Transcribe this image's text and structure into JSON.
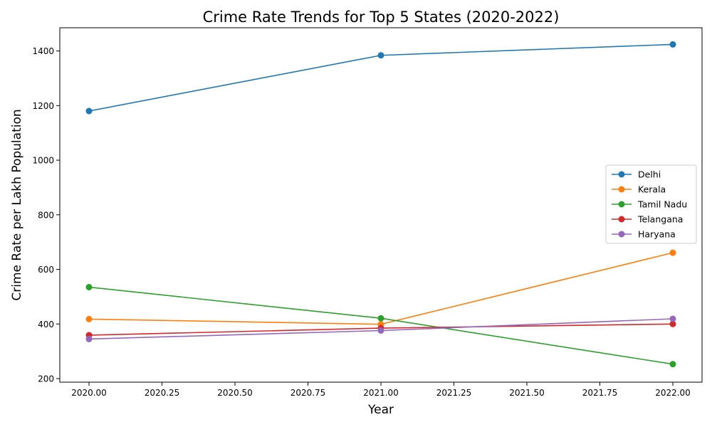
{
  "chart_data": {
    "type": "line",
    "title": "Crime Rate Trends for Top 5 States (2020-2022)",
    "xlabel": "Year",
    "ylabel": "Crime Rate per Lakh Population",
    "x": [
      2020,
      2021,
      2022
    ],
    "xlim": [
      1999.9,
      2022.1
    ],
    "ylim": [
      187,
      1485
    ],
    "x_ticks": [
      2020.0,
      2020.25,
      2020.5,
      2020.75,
      2021.0,
      2021.25,
      2021.5,
      2021.75,
      2022.0
    ],
    "x_tick_labels": [
      "2020.00",
      "2020.25",
      "2020.50",
      "2020.75",
      "2021.00",
      "2021.25",
      "2021.50",
      "2021.75",
      "2022.00"
    ],
    "y_ticks": [
      200,
      400,
      600,
      800,
      1000,
      1200,
      1400
    ],
    "y_tick_labels": [
      "200",
      "400",
      "600",
      "800",
      "1000",
      "1200",
      "1400"
    ],
    "grid": false,
    "legend_position": "center-right",
    "series": [
      {
        "name": "Delhi",
        "color": "#1f77b4",
        "values": [
          1180,
          1384,
          1424
        ]
      },
      {
        "name": "Kerala",
        "color": "#ff7f0e",
        "values": [
          418,
          399,
          661
        ]
      },
      {
        "name": "Tamil Nadu",
        "color": "#2ca02c",
        "values": [
          535,
          421,
          253
        ]
      },
      {
        "name": "Telangana",
        "color": "#d62728",
        "values": [
          359,
          385,
          400
        ]
      },
      {
        "name": "Haryana",
        "color": "#9467bd",
        "values": [
          345,
          376,
          419
        ]
      }
    ]
  }
}
